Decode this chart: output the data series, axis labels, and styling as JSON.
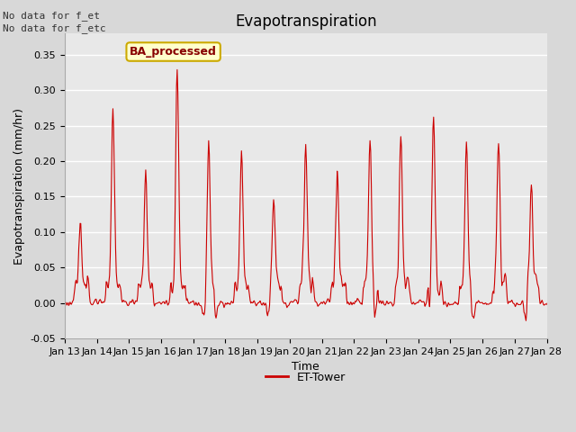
{
  "title": "Evapotranspiration",
  "xlabel": "Time",
  "ylabel": "Evapotranspiration (mm/hr)",
  "ylim": [
    -0.05,
    0.38
  ],
  "line_color": "#cc0000",
  "line_width": 0.8,
  "bg_color": "#d8d8d8",
  "plot_bg_color": "#e8e8e8",
  "legend_label": "ET-Tower",
  "legend_line_color": "#cc0000",
  "text_no_data1": "No data for f_et",
  "text_no_data2": "No data for f_etc",
  "watermark_text": "BA_processed",
  "watermark_bg": "#ffffcc",
  "watermark_border": "#ccaa00",
  "watermark_text_color": "#880000",
  "tick_labels": [
    "Jan 13",
    "Jan 14",
    "Jan 15",
    "Jan 16",
    "Jan 17",
    "Jan 18",
    "Jan 19",
    "Jan 20",
    "Jan 21",
    "Jan 22",
    "Jan 23",
    "Jan 24",
    "Jan 25",
    "Jan 26",
    "Jan 27",
    "Jan 28"
  ],
  "title_fontsize": 12,
  "axis_fontsize": 9,
  "tick_fontsize": 8,
  "legend_fontsize": 9,
  "grid_color": "#ffffff",
  "grid_linewidth": 1.0,
  "daily_peaks": [
    0.1,
    0.27,
    0.175,
    0.335,
    0.215,
    0.2,
    0.135,
    0.22,
    0.175,
    0.22,
    0.215,
    0.26,
    0.22,
    0.22,
    0.15,
    0.02
  ],
  "peak_hours": [
    11.5,
    12.0,
    12.5,
    12.0,
    11.5,
    12.0,
    12.0,
    12.0,
    11.5,
    12.0,
    11.0,
    11.5,
    12.0,
    12.0,
    12.5,
    11.0
  ]
}
